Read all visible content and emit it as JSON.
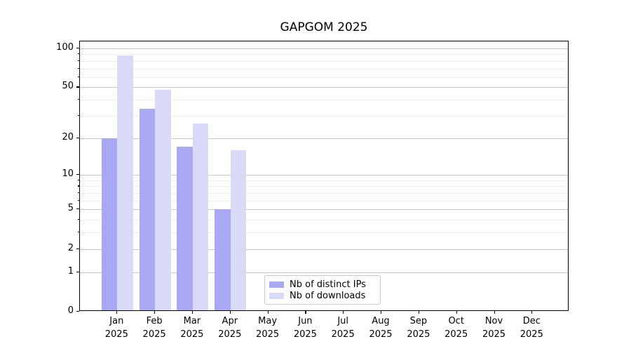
{
  "title": "GAPGOM 2025",
  "chart_data": {
    "type": "bar",
    "title": "GAPGOM 2025",
    "categories": [
      "Jan",
      "Feb",
      "Mar",
      "Apr",
      "May",
      "Jun",
      "Jul",
      "Aug",
      "Sep",
      "Oct",
      "Nov",
      "Dec"
    ],
    "year_label": "2025",
    "series": [
      {
        "name": "Nb of distinct IPs",
        "color": "#a9a9f3",
        "values": [
          20,
          34,
          17,
          5,
          0,
          0,
          0,
          0,
          0,
          0,
          0,
          0
        ]
      },
      {
        "name": "Nb of downloads",
        "color": "#d9d9f8",
        "values": [
          88,
          48,
          26,
          16,
          0,
          0,
          0,
          0,
          0,
          0,
          0,
          0
        ]
      }
    ],
    "y_ticks": [
      0,
      1,
      2,
      5,
      10,
      20,
      50,
      100
    ],
    "y_minor_ticks": [
      3,
      4,
      6,
      7,
      8,
      9,
      30,
      40,
      60,
      70,
      80,
      90
    ],
    "y_scale": "log1p",
    "y_max": 113,
    "grid": "on",
    "legend_position": "lower center",
    "colors": {
      "grid_major": "#c8c8c8",
      "grid_minor": "#ececec",
      "axis": "#000000",
      "legend_border": "#c9c9c9"
    }
  }
}
